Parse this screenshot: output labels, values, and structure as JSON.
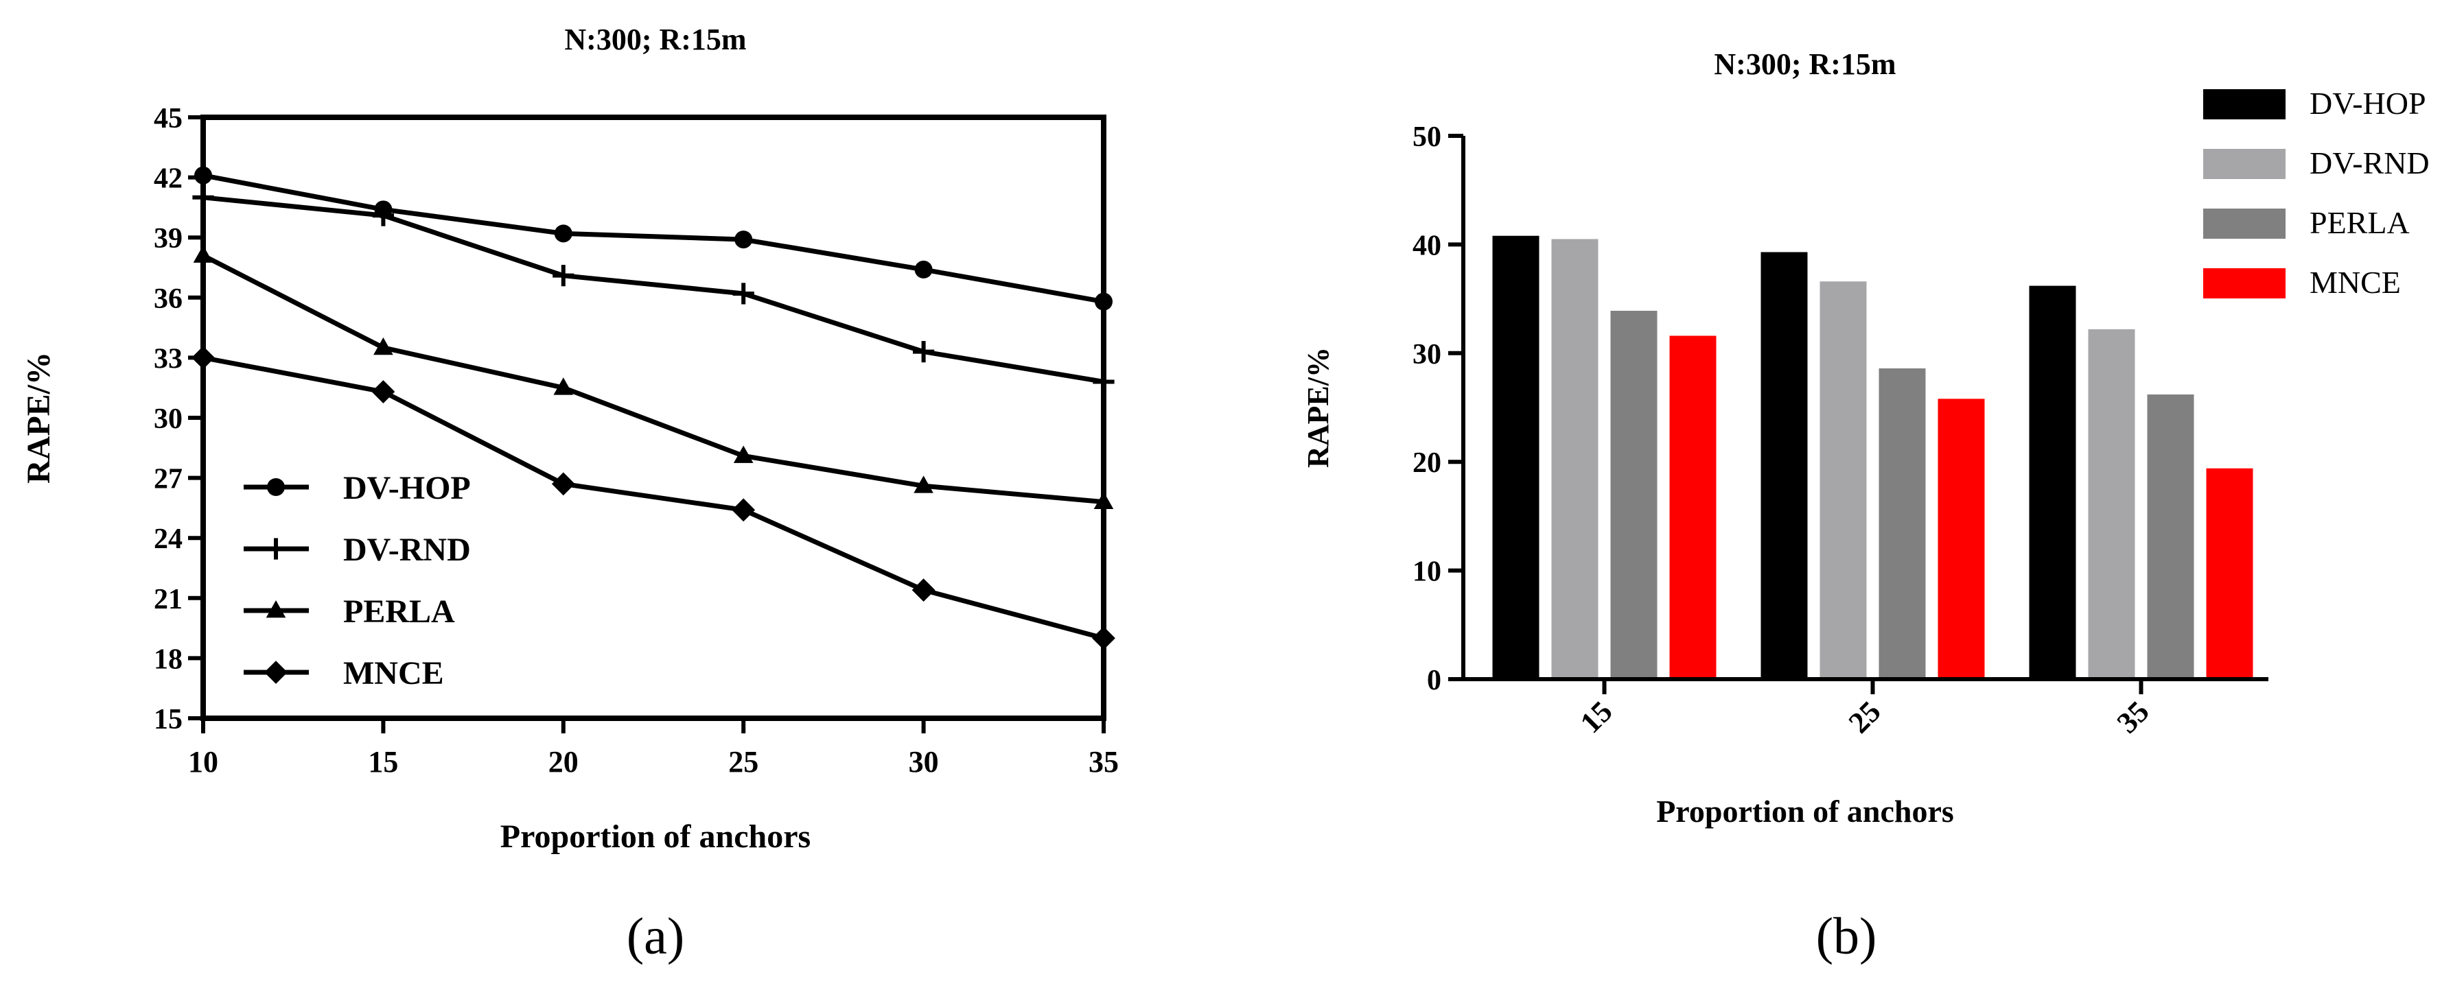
{
  "chart_data": [
    {
      "panel": "(a)",
      "type": "line",
      "title": "N:300; R:15m",
      "xlabel": "Proportion of anchors",
      "ylabel": "RAPE/%",
      "x": [
        10,
        15,
        20,
        25,
        30,
        35
      ],
      "xlim": [
        10,
        35
      ],
      "ylim": [
        15,
        45
      ],
      "yticks": [
        15,
        18,
        21,
        24,
        27,
        30,
        33,
        36,
        39,
        42,
        45
      ],
      "xticks": [
        10,
        15,
        20,
        25,
        30,
        35
      ],
      "legend_position": "lower-left",
      "grid": false,
      "series": [
        {
          "name": "DV-HOP",
          "marker": "circle",
          "values": [
            42.1,
            40.4,
            39.2,
            38.9,
            37.4,
            35.8
          ]
        },
        {
          "name": "DV-RND",
          "marker": "plus",
          "values": [
            41.0,
            40.1,
            37.1,
            36.2,
            33.3,
            31.8
          ]
        },
        {
          "name": "PERLA",
          "marker": "triangle",
          "values": [
            38.1,
            33.5,
            31.5,
            28.1,
            26.6,
            25.8
          ]
        },
        {
          "name": "MNCE",
          "marker": "diamond",
          "values": [
            33.0,
            31.3,
            26.7,
            25.4,
            21.4,
            19.0
          ]
        }
      ]
    },
    {
      "panel": "(b)",
      "type": "bar",
      "title": "N:300; R:15m",
      "xlabel": "Proportion of anchors",
      "ylabel": "RAPE/%",
      "categories": [
        "15",
        "25",
        "35"
      ],
      "ylim": [
        0,
        50
      ],
      "yticks": [
        0,
        10,
        20,
        30,
        40,
        50
      ],
      "legend_position": "top-right",
      "grid": false,
      "series": [
        {
          "name": "DV-HOP",
          "color": "#000000",
          "values": [
            40.8,
            39.3,
            36.2
          ]
        },
        {
          "name": "DV-RND",
          "color": "#a6a6a8",
          "values": [
            40.5,
            36.6,
            32.2
          ]
        },
        {
          "name": "PERLA",
          "color": "#808080",
          "values": [
            33.9,
            28.6,
            26.2
          ]
        },
        {
          "name": "MNCE",
          "color": "#ff0000",
          "values": [
            31.6,
            25.8,
            19.4
          ]
        }
      ]
    }
  ]
}
